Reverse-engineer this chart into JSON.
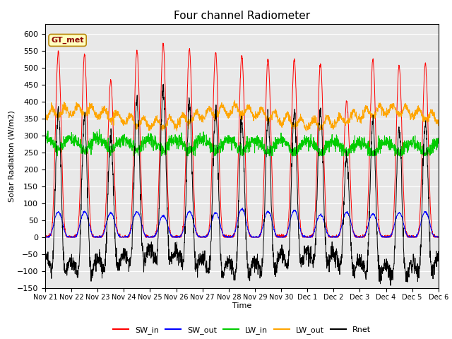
{
  "title": "Four channel Radiometer",
  "xlabel": "Time",
  "ylabel": "Solar Radiation (W/m2)",
  "ylim": [
    -150,
    630
  ],
  "yticks": [
    -150,
    -100,
    -50,
    0,
    50,
    100,
    150,
    200,
    250,
    300,
    350,
    400,
    450,
    500,
    550,
    600
  ],
  "xtick_labels": [
    "Nov 21",
    "Nov 22",
    "Nov 23",
    "Nov 24",
    "Nov 25",
    "Nov 26",
    "Nov 27",
    "Nov 28",
    "Nov 29",
    "Nov 30",
    "Dec 1",
    "Dec 2",
    "Dec 3",
    "Dec 4",
    "Dec 5",
    "Dec 6"
  ],
  "num_days": 15,
  "annotation_text": "GT_met",
  "annotation_bg": "#FFFFC0",
  "annotation_border": "#B8860B",
  "bg_color": "#E8E8E8",
  "colors": {
    "SW_in": "#FF0000",
    "SW_out": "#0000FF",
    "LW_in": "#00CC00",
    "LW_out": "#FFA500",
    "Rnet": "#000000"
  },
  "legend_labels": [
    "SW_in",
    "SW_out",
    "LW_in",
    "LW_out",
    "Rnet"
  ],
  "SW_in_peaks": [
    545,
    535,
    460,
    548,
    568,
    552,
    545,
    533,
    525,
    522,
    510,
    400,
    520,
    505,
    510
  ],
  "LW_base": 290,
  "LW_out_base": 340
}
